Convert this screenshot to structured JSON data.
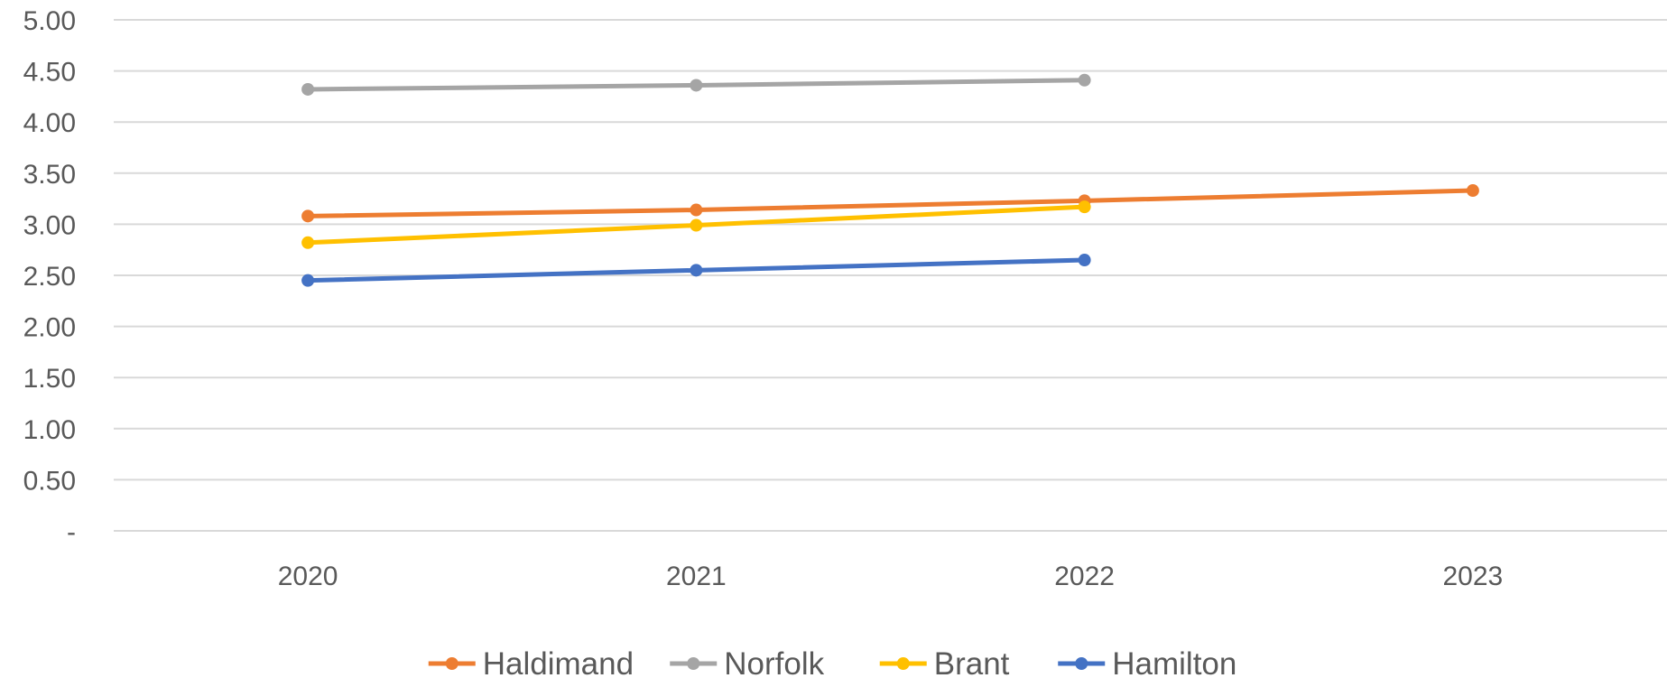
{
  "chart_data": {
    "type": "line",
    "categories": [
      "2020",
      "2021",
      "2022",
      "2023"
    ],
    "ylim": [
      0,
      5
    ],
    "y_ticks": [
      {
        "value": 0,
        "label": "-"
      },
      {
        "value": 0.5,
        "label": "0.50"
      },
      {
        "value": 1.0,
        "label": "1.00"
      },
      {
        "value": 1.5,
        "label": "1.50"
      },
      {
        "value": 2.0,
        "label": "2.00"
      },
      {
        "value": 2.5,
        "label": "2.50"
      },
      {
        "value": 3.0,
        "label": "3.00"
      },
      {
        "value": 3.5,
        "label": "3.50"
      },
      {
        "value": 4.0,
        "label": "4.00"
      },
      {
        "value": 4.5,
        "label": "4.50"
      },
      {
        "value": 5.0,
        "label": "5.00"
      }
    ],
    "grid": true,
    "legend_position": "bottom",
    "series": [
      {
        "name": "Haldimand",
        "color": "#ED7D31",
        "values": [
          3.08,
          3.14,
          3.23,
          3.33
        ]
      },
      {
        "name": "Norfolk",
        "color": "#A5A5A5",
        "values": [
          4.32,
          4.36,
          4.41,
          null
        ]
      },
      {
        "name": "Brant",
        "color": "#FFC000",
        "values": [
          2.82,
          2.99,
          3.17,
          null
        ]
      },
      {
        "name": "Hamilton",
        "color": "#4472C4",
        "values": [
          2.45,
          2.55,
          2.65,
          null
        ]
      }
    ]
  }
}
